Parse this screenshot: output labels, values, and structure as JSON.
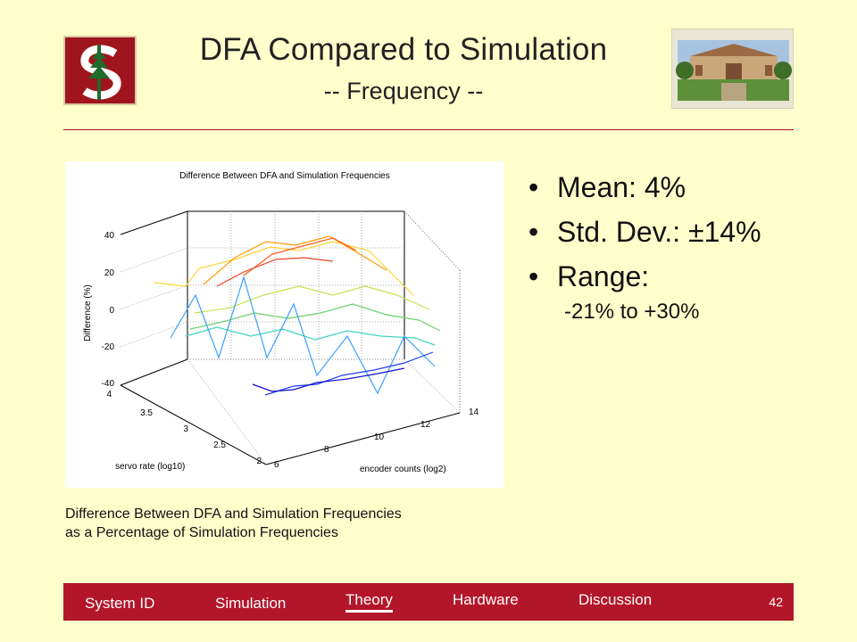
{
  "slide": {
    "title": "DFA Compared to Simulation",
    "subtitle": "-- Frequency --",
    "caption_line1": "Difference Between DFA and Simulation Frequencies",
    "caption_line2": "as a Percentage of Simulation Frequencies"
  },
  "bullets": [
    {
      "text": "Mean: 4%"
    },
    {
      "text": "Std. Dev.: ±14%"
    },
    {
      "text": "Range:"
    }
  ],
  "sub_bullet": "-21% to +30%",
  "footer": {
    "nav": [
      "System ID",
      "Simulation",
      "Theory",
      "Hardware",
      "Discussion"
    ],
    "active": "Theory",
    "page_number": "42"
  },
  "chart_data": {
    "type": "surface",
    "title": "Difference Between DFA and Simulation Frequencies",
    "xlabel": "servo rate (log10)",
    "ylabel": "encoder counts (log2)",
    "zlabel": "Difference (%)",
    "x_ticks": [
      "2",
      "2.5",
      "3",
      "3.5",
      "4"
    ],
    "y_ticks": [
      "6",
      "8",
      "10",
      "12",
      "14"
    ],
    "z_ticks": [
      "-40",
      "-20",
      "0",
      "20",
      "40"
    ],
    "zlim": [
      -40,
      40
    ]
  },
  "colors": {
    "background": "#ffffcc",
    "accent": "#a0141e"
  },
  "icons": {
    "logo": "stanford-s-logo",
    "campus": "campus-photo"
  }
}
